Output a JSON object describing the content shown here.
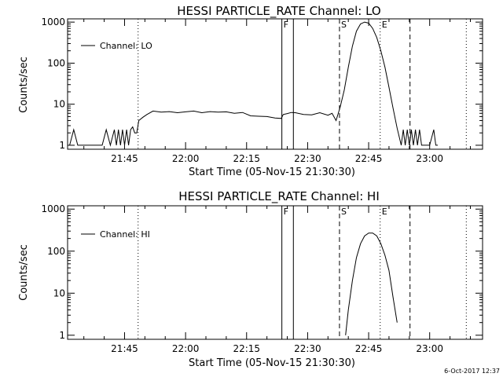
{
  "footer_timestamp": "6-Oct-2017 12:37",
  "chart_data": [
    {
      "type": "line",
      "title": "HESSI PARTICLE_RATE Channel: LO",
      "xlabel": "Start Time (05-Nov-15 21:30:30)",
      "ylabel": "Counts/sec",
      "y_scale": "log",
      "ylim": [
        0.8,
        1200
      ],
      "xlim": [
        "21:31:00",
        "23:13:00"
      ],
      "x_ticks": [
        "21:45",
        "22:00",
        "22:15",
        "22:30",
        "22:45",
        "23:00"
      ],
      "y_ticks": [
        "1",
        "10",
        "100",
        "1000"
      ],
      "legend": {
        "position": "top-left",
        "label": "Channel: LO"
      },
      "markers": [
        {
          "time": "21:48:20",
          "style": "dotted",
          "label": ""
        },
        {
          "time": "22:23:40",
          "style": "solid",
          "label": "F"
        },
        {
          "time": "22:26:30",
          "style": "solid",
          "label": ""
        },
        {
          "time": "22:37:50",
          "style": "dashed",
          "label": "S"
        },
        {
          "time": "22:47:50",
          "style": "dotted",
          "label": "E"
        },
        {
          "time": "22:55:10",
          "style": "dashed",
          "label": ""
        },
        {
          "time": "23:09:00",
          "style": "dotted",
          "label": ""
        }
      ],
      "series": [
        {
          "x": [
            "21:31:30",
            "21:32:30",
            "21:33:30",
            "21:34:30",
            "21:35:30",
            "21:36:30",
            "21:37:30",
            "21:38:30",
            "21:39:30",
            "21:40:30",
            "21:41:30",
            "21:42:30",
            "21:43:00",
            "21:43:30",
            "21:44:00",
            "21:44:30",
            "21:45:00",
            "21:45:30",
            "21:46:00",
            "21:46:30",
            "21:47:00",
            "21:47:30",
            "21:48:00",
            "21:48:30",
            "21:49:30",
            "21:50:30",
            "21:52:00",
            "21:54:00",
            "21:56:00",
            "21:58:00",
            "22:00:00",
            "22:02:00",
            "22:04:00",
            "22:06:00",
            "22:08:00",
            "22:10:00",
            "22:12:00",
            "22:14:00",
            "22:16:00",
            "22:18:00",
            "22:20:00",
            "22:22:00",
            "22:23:30",
            "22:24:00",
            "22:25:00",
            "22:26:00",
            "22:27:00",
            "22:29:00",
            "22:31:00",
            "22:33:00",
            "22:35:00",
            "22:36:00",
            "22:37:00",
            "22:38:00",
            "22:39:00",
            "22:40:00",
            "22:41:00",
            "22:42:00",
            "22:43:00",
            "22:44:00",
            "22:45:00",
            "22:46:00",
            "22:47:00",
            "22:48:00",
            "22:49:00",
            "22:50:00",
            "22:51:00",
            "22:52:00",
            "22:53:00",
            "22:53:30",
            "22:54:00",
            "22:54:30",
            "22:55:00",
            "22:55:30",
            "22:56:00",
            "22:56:30",
            "22:57:00",
            "22:57:30",
            "22:58:00",
            "22:58:30",
            "22:59:00",
            "23:00:00",
            "23:01:00",
            "23:01:30",
            "23:02:00"
          ],
          "values": [
            1.0,
            2.4,
            1.0,
            1.0,
            1.0,
            1.0,
            1.0,
            1.0,
            1.0,
            2.4,
            1.0,
            2.4,
            1.0,
            2.4,
            1.0,
            2.4,
            1.0,
            2.4,
            1.0,
            2.4,
            2.8,
            2.0,
            2.0,
            4.0,
            4.8,
            5.6,
            6.8,
            6.4,
            6.6,
            6.2,
            6.5,
            6.8,
            6.2,
            6.6,
            6.4,
            6.5,
            6.0,
            6.3,
            5.2,
            5.1,
            5.0,
            4.6,
            4.5,
            5.6,
            5.9,
            6.3,
            6.2,
            5.6,
            5.5,
            6.2,
            5.4,
            6.0,
            4.0,
            8.5,
            22,
            80,
            260,
            600,
            900,
            1000,
            940,
            700,
            420,
            200,
            80,
            26,
            8.0,
            2.6,
            1.0,
            2.4,
            1.0,
            2.4,
            1.0,
            2.4,
            1.0,
            2.4,
            1.0,
            2.4,
            1.0,
            1.0,
            1.0,
            1.0,
            2.4,
            1.0,
            1.0
          ]
        }
      ]
    },
    {
      "type": "line",
      "title": "HESSI PARTICLE_RATE Channel: HI",
      "xlabel": "Start Time (05-Nov-15 21:30:30)",
      "ylabel": "Counts/sec",
      "y_scale": "log",
      "ylim": [
        0.8,
        1200
      ],
      "xlim": [
        "21:31:00",
        "23:13:00"
      ],
      "x_ticks": [
        "21:45",
        "22:00",
        "22:15",
        "22:30",
        "22:45",
        "23:00"
      ],
      "y_ticks": [
        "1",
        "10",
        "100",
        "1000"
      ],
      "legend": {
        "position": "top-left",
        "label": "Channel: HI"
      },
      "markers": [
        {
          "time": "21:48:20",
          "style": "dotted",
          "label": ""
        },
        {
          "time": "22:23:40",
          "style": "solid",
          "label": "F"
        },
        {
          "time": "22:26:30",
          "style": "solid",
          "label": ""
        },
        {
          "time": "22:37:50",
          "style": "dashed",
          "label": "S"
        },
        {
          "time": "22:47:50",
          "style": "dotted",
          "label": "E"
        },
        {
          "time": "22:55:10",
          "style": "dashed",
          "label": ""
        },
        {
          "time": "23:09:00",
          "style": "dotted",
          "label": ""
        }
      ],
      "series": [
        {
          "x": [
            "22:39:20",
            "22:40:00",
            "22:41:00",
            "22:42:00",
            "22:43:00",
            "22:44:00",
            "22:45:00",
            "22:46:00",
            "22:47:00",
            "22:48:00",
            "22:49:00",
            "22:50:00",
            "22:51:00",
            "22:52:00"
          ],
          "values": [
            1.0,
            4.0,
            20,
            70,
            150,
            230,
            270,
            270,
            230,
            150,
            80,
            35,
            8,
            2
          ]
        }
      ]
    }
  ]
}
